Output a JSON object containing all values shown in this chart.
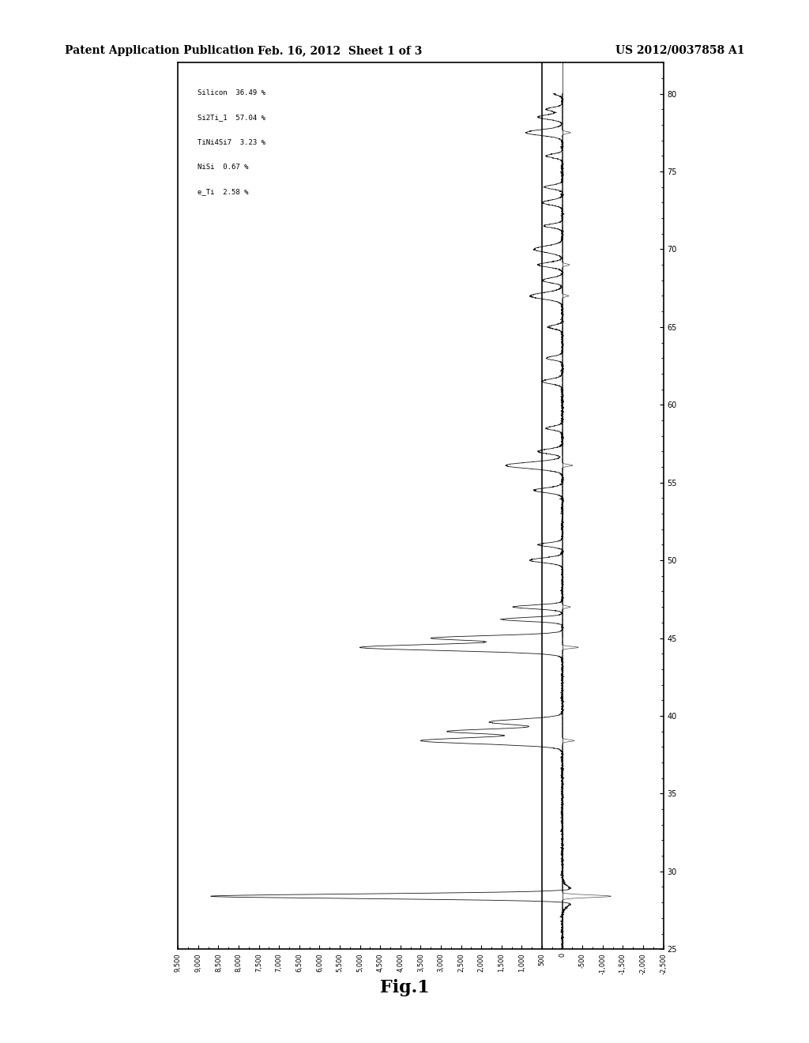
{
  "header_left": "Patent Application Publication",
  "header_mid": "Feb. 16, 2012  Sheet 1 of 3",
  "header_right": "US 2012/0037858 A1",
  "fig_caption": "Fig.1",
  "legend_items": [
    {
      "label": "Silicon",
      "value": "36.49 %"
    },
    {
      "label": "Si2Ti_1",
      "value": "57.04 %"
    },
    {
      "label": "TiNi4Si7",
      "value": "3.23 %"
    },
    {
      "label": "NiSi",
      "value": "0.67 %"
    },
    {
      "label": "e_Ti",
      "value": "2.58 %"
    }
  ],
  "y_ticks": [
    9500,
    9000,
    8500,
    8000,
    7500,
    7000,
    6500,
    6000,
    5500,
    5000,
    4500,
    4000,
    3500,
    3000,
    2500,
    2000,
    1500,
    1000,
    500,
    0,
    -500,
    -1000,
    -1500,
    -2000,
    -2500
  ],
  "x_ticks": [
    25,
    30,
    35,
    40,
    45,
    50,
    55,
    60,
    65,
    70,
    75,
    80
  ],
  "background_color": "#ffffff",
  "chart_bg": "#f5f5f5",
  "line_color": "#000000"
}
